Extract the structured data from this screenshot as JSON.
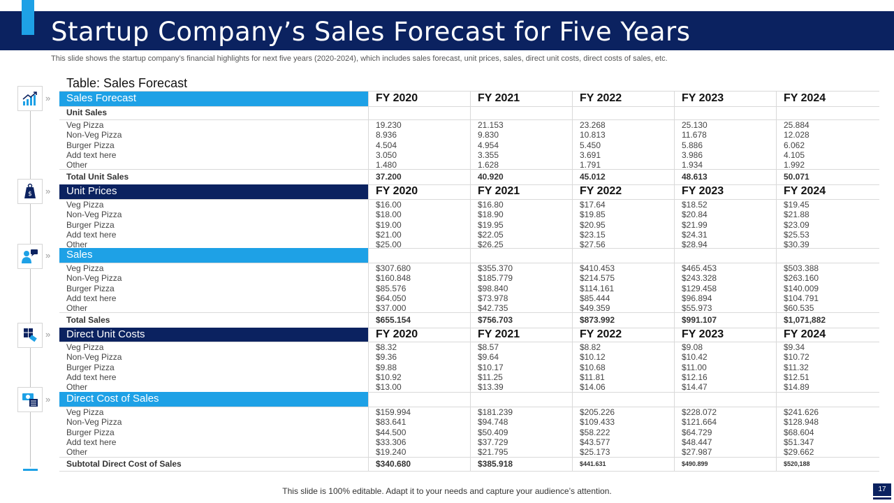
{
  "slide": {
    "title": "Startup Company’s Sales Forecast for Five Years",
    "subtitle": "This slide shows the startup company’s financial highlights for next five years (2020-2024), which includes sales forecast, unit prices, sales, direct unit costs, direct costs of sales, etc.",
    "table_title": "Table: Sales Forecast",
    "footer": "This slide is 100% editable. Adapt it to your needs and capture your audience’s attention.",
    "page_number": "17"
  },
  "years": [
    "FY 2020",
    "FY 2021",
    "FY 2022",
    "FY 2023",
    "FY 2024"
  ],
  "sections": {
    "sales_forecast": {
      "label": "Sales Forecast",
      "subheader": "Unit Sales",
      "rows": [
        {
          "label": "Veg Pizza",
          "values": [
            "19.230",
            "21.153",
            "23.268",
            "25.130",
            "25.884"
          ]
        },
        {
          "label": "Non-Veg Pizza",
          "values": [
            "8.936",
            "9.830",
            "10.813",
            "11.678",
            "12.028"
          ]
        },
        {
          "label": "Burger Pizza",
          "values": [
            "4.504",
            "4.954",
            "5.450",
            "5.886",
            "6.062"
          ]
        },
        {
          "label": "Add text here",
          "values": [
            "3.050",
            "3.355",
            "3.691",
            "3.986",
            "4.105"
          ]
        },
        {
          "label": "Other",
          "values": [
            "1.480",
            "1.628",
            "1.791",
            "1.934",
            "1.992"
          ]
        }
      ],
      "total": {
        "label": "Total Unit Sales",
        "values": [
          "37.200",
          "40.920",
          "45.012",
          "48.613",
          "50.071"
        ]
      }
    },
    "unit_prices": {
      "label": "Unit Prices",
      "rows": [
        {
          "label": "Veg Pizza",
          "values": [
            "$16.00",
            "$16.80",
            "$17.64",
            "$18.52",
            "$19.45"
          ]
        },
        {
          "label": "Non-Veg Pizza",
          "values": [
            "$18.00",
            "$18.90",
            "$19.85",
            "$20.84",
            "$21.88"
          ]
        },
        {
          "label": "Burger Pizza",
          "values": [
            "$19.00",
            "$19.95",
            "$20.95",
            "$21.99",
            "$23.09"
          ]
        },
        {
          "label": "Add text here",
          "values": [
            "$21.00",
            "$22.05",
            "$23.15",
            "$24.31",
            "$25.53"
          ]
        },
        {
          "label": "Other",
          "values": [
            "$25.00",
            "$26.25",
            "$27.56",
            "$28.94",
            "$30.39"
          ]
        }
      ]
    },
    "sales": {
      "label": "Sales",
      "rows": [
        {
          "label": "Veg Pizza",
          "values": [
            "$307.680",
            "$355.370",
            "$410.453",
            "$465.453",
            "$503.388"
          ]
        },
        {
          "label": "Non-Veg Pizza",
          "values": [
            "$160.848",
            "$185.779",
            "$214.575",
            "$243.328",
            "$263.160"
          ]
        },
        {
          "label": "Burger Pizza",
          "values": [
            "$85.576",
            "$98.840",
            "$114.161",
            "$129.458",
            "$140.009"
          ]
        },
        {
          "label": "Add text here",
          "values": [
            "$64.050",
            "$73.978",
            "$85.444",
            "$96.894",
            "$104.791"
          ]
        },
        {
          "label": "Other",
          "values": [
            "$37.000",
            "$42.735",
            "$49.359",
            "$55.973",
            "$60.535"
          ]
        }
      ],
      "total": {
        "label": "Total Sales",
        "values": [
          "$655.154",
          "$756.703",
          "$873.992",
          "$991.107",
          "$1,071,882"
        ]
      }
    },
    "direct_unit_costs": {
      "label": "Direct Unit Costs",
      "rows": [
        {
          "label": "Veg Pizza",
          "values": [
            "$8.32",
            "$8.57",
            "$8.82",
            "$9.08",
            "$9.34"
          ]
        },
        {
          "label": "Non-Veg Pizza",
          "values": [
            "$9.36",
            "$9.64",
            "$10.12",
            "$10.42",
            "$10.72"
          ]
        },
        {
          "label": "Burger Pizza",
          "values": [
            "$9.88",
            "$10.17",
            "$10.68",
            "$11.00",
            "$11.32"
          ]
        },
        {
          "label": "Add text here",
          "values": [
            "$10.92",
            "$11.25",
            "$11.81",
            "$12.16",
            "$12.51"
          ]
        },
        {
          "label": "Other",
          "values": [
            "$13.00",
            "$13.39",
            "$14.06",
            "$14.47",
            "$14.89"
          ]
        }
      ]
    },
    "direct_cost_of_sales": {
      "label": "Direct Cost of Sales",
      "rows": [
        {
          "label": "Veg Pizza",
          "values": [
            "$159.994",
            "$181.239",
            "$205.226",
            "$228.072",
            "$241.626"
          ]
        },
        {
          "label": "Non-Veg Pizza",
          "values": [
            "$83.641",
            "$94.748",
            "$109.433",
            "$121.664",
            "$128.948"
          ]
        },
        {
          "label": "Burger Pizza",
          "values": [
            "$44.500",
            "$50.409",
            "$58.222",
            "$64.729",
            "$68.604"
          ]
        },
        {
          "label": "Add text here",
          "values": [
            "$33.306",
            "$37.729",
            "$43.577",
            "$48.447",
            "$51.347"
          ]
        },
        {
          "label": "Other",
          "values": [
            "$19.240",
            "$21.795",
            "$25.173",
            "$27.987",
            "$29.662"
          ]
        }
      ],
      "total": {
        "label": "Subtotal Direct Cost of Sales",
        "values": [
          "$340.680",
          "$385.918",
          "$441.631",
          "$490.899",
          "$520,188"
        ]
      }
    }
  },
  "icons": {
    "accent_color": "#1ea1e6",
    "dark_color": "#0b2260"
  }
}
